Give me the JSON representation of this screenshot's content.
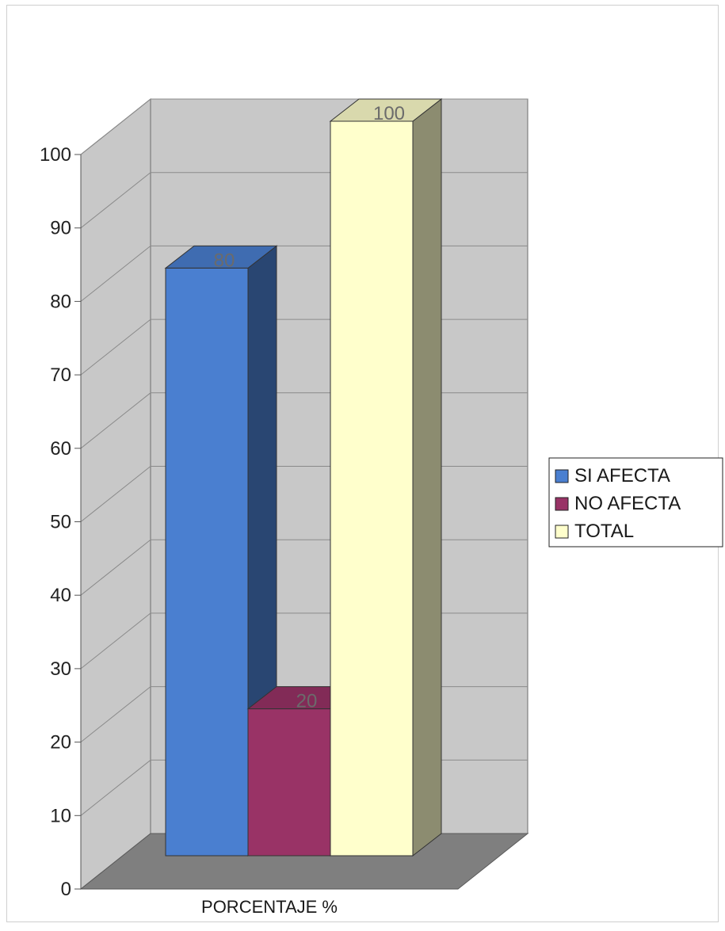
{
  "chart_data": {
    "type": "bar",
    "title": "",
    "xlabel": "",
    "ylabel": "",
    "categories": [
      "PORCENTAJE %"
    ],
    "series": [
      {
        "name": "SI AFECTA",
        "values": [
          80
        ],
        "color": "#4a7fd0"
      },
      {
        "name": "NO AFECTA",
        "values": [
          20
        ],
        "color": "#993366"
      },
      {
        "name": "TOTAL",
        "values": [
          100
        ],
        "color": "#ffffcc"
      }
    ],
    "data_labels": [
      "80",
      "20",
      "100"
    ],
    "y_ticks": [
      "0",
      "10",
      "20",
      "30",
      "40",
      "50",
      "60",
      "70",
      "80",
      "90",
      "100"
    ],
    "ylim": [
      0,
      100
    ],
    "grid": true,
    "three_d": true,
    "legend_position": "right",
    "colors": {
      "wall": "#c8c8c8",
      "floor": "#7f7f7f",
      "gridline": "#8a8a8a"
    }
  }
}
